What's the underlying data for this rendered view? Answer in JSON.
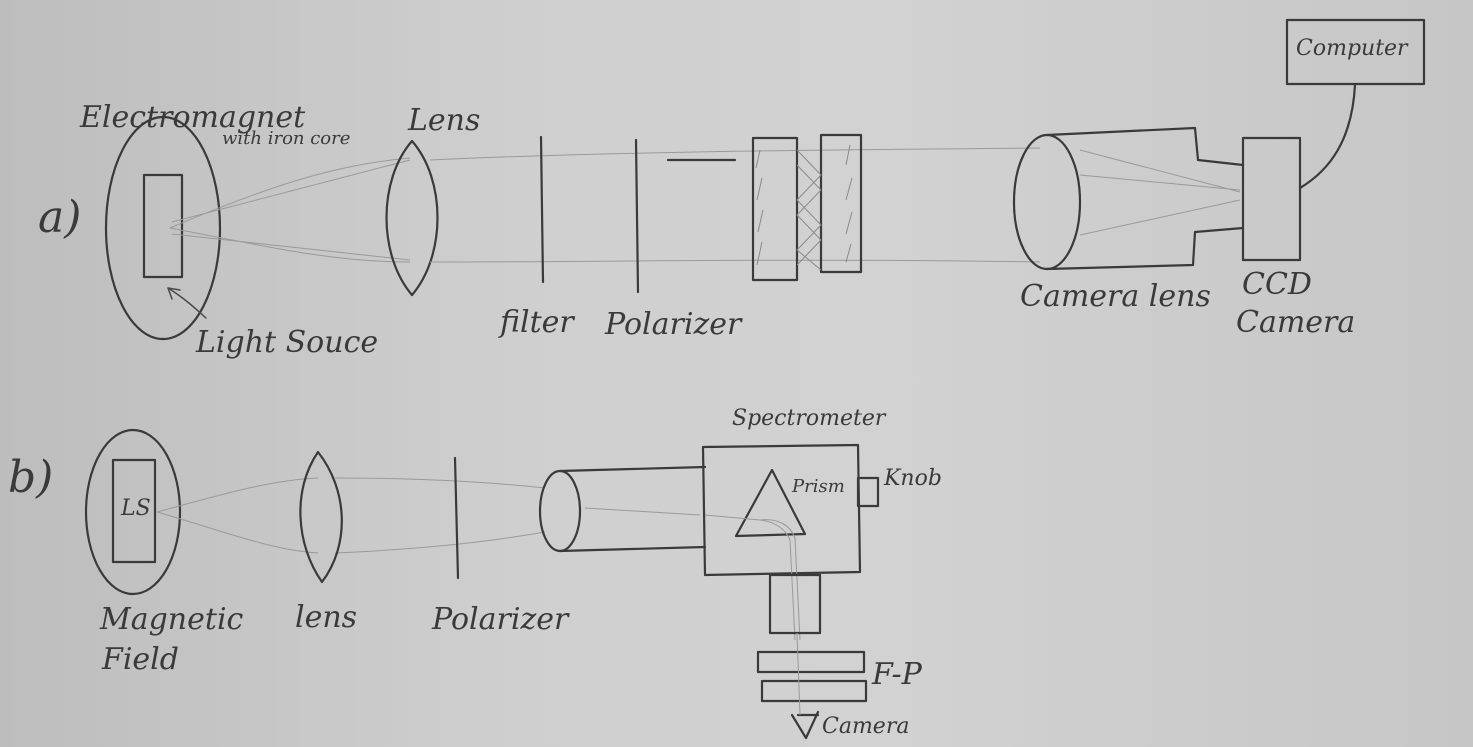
{
  "panel_a": {
    "marker": "a)",
    "electromagnet_label_line1": "Electromagnet",
    "electromagnet_label_line2": "with iron core",
    "lens_label": "Lens",
    "light_source_label": "Light Souce",
    "filter_label": "filter",
    "polarizer_label": "Polarizer",
    "camera_lens_label": "Camera lens",
    "ccd_label_line1": "CCD",
    "ccd_label_line2": "Camera",
    "computer_label": "Computer"
  },
  "panel_b": {
    "marker": "b)",
    "light_source_abbrev": "LS",
    "magnetic_field_label_line1": "Magnetic",
    "magnetic_field_label_line2": "Field",
    "lens_label": "lens",
    "polarizer_label": "Polarizer",
    "spectrometer_label": "Spectrometer",
    "prism_label": "Prism",
    "knob_label": "Knob",
    "fp_label": "F-P",
    "camera_label": "Camera"
  }
}
